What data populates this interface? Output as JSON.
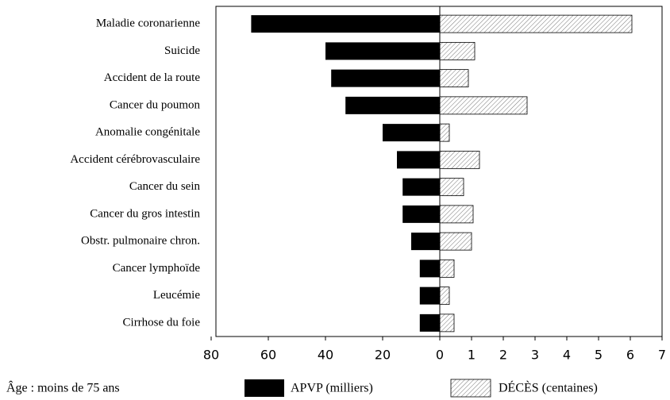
{
  "chart_data": {
    "type": "butterfly-bar",
    "categories": [
      "Maladie coronarienne",
      "Suicide",
      "Accident de la route",
      "Cancer du poumon",
      "Anomalie congénitale",
      "Accident cérébrovasculaire",
      "Cancer du sein",
      "Cancer du gros intestin",
      "Obstr. pulmonaire chron.",
      "Cancer lymphoïde",
      "Leucémie",
      "Cirrhose du foie"
    ],
    "series": [
      {
        "name": "APVP (milliers)",
        "color": "#000000",
        "values": [
          66,
          40,
          38,
          33,
          20,
          15,
          13,
          13,
          10,
          7,
          7,
          7
        ]
      },
      {
        "name": "DÉCÈS (centaines)",
        "color": "#888888",
        "axis": "x2",
        "values": [
          6.05,
          1.1,
          0.9,
          2.75,
          0.3,
          1.25,
          0.75,
          1.05,
          1.0,
          0.45,
          0.3,
          0.45
        ]
      }
    ],
    "xlim": [
      80,
      0
    ],
    "xticks": [
      80,
      60,
      40,
      20,
      0
    ],
    "x2lim": [
      0,
      7
    ],
    "x2ticks": [
      1,
      2,
      3,
      4,
      5,
      6,
      7
    ],
    "note": "Âge : moins de 75 ans"
  }
}
